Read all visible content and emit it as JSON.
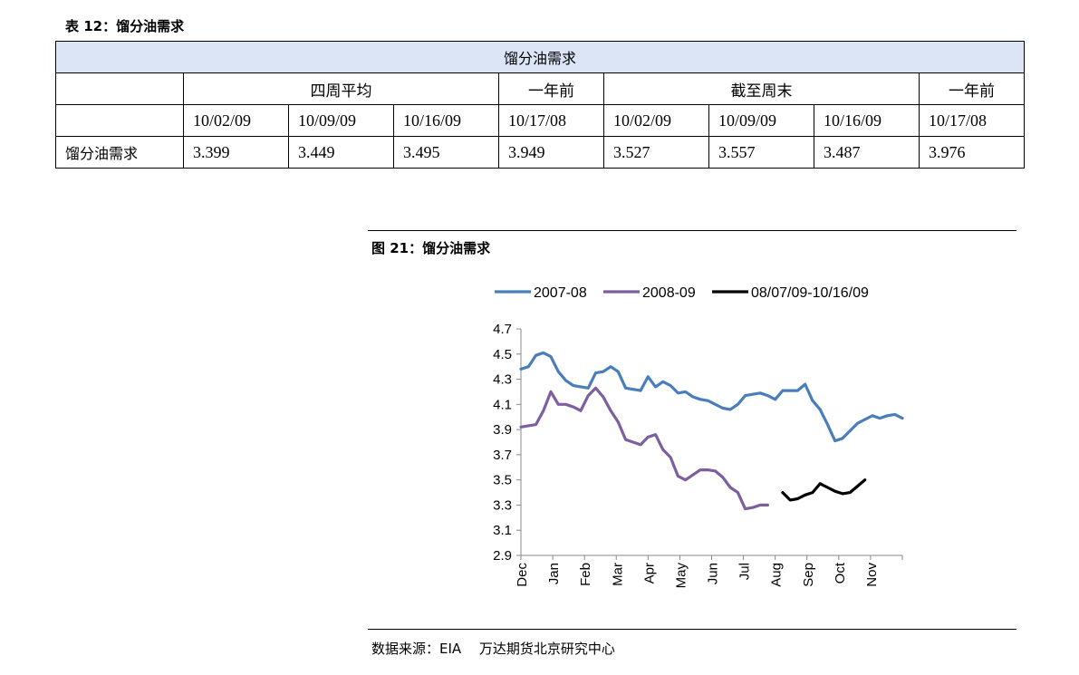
{
  "table": {
    "title": "表 12：馏分油需求",
    "band_header": "馏分油需求",
    "group_headers": [
      "四周平均",
      "一年前",
      "截至周末",
      "一年前"
    ],
    "dates": [
      "10/02/09",
      "10/09/09",
      "10/16/09",
      "10/17/08",
      "10/02/09",
      "10/09/09",
      "10/16/09",
      "10/17/08"
    ],
    "row_label": "馏分油需求",
    "values": [
      "3.399",
      "3.449",
      "3.495",
      "3.949",
      "3.527",
      "3.557",
      "3.487",
      "3.976"
    ]
  },
  "figure": {
    "title": "图 21：馏分油需求",
    "source": "数据来源：EIA　 万达期货北京研究中心"
  },
  "chart_data": {
    "type": "line",
    "title": "",
    "xlabel": "",
    "ylabel": "",
    "ylim": [
      2.9,
      4.7
    ],
    "yticks": [
      "4.7",
      "4.5",
      "4.3",
      "4.1",
      "3.9",
      "3.7",
      "3.5",
      "3.3",
      "3.1",
      "2.9"
    ],
    "months": [
      "Dec",
      "Jan",
      "Feb",
      "Mar",
      "Apr",
      "May",
      "Jun",
      "Jul",
      "Aug",
      "Sep",
      "Oct",
      "Nov"
    ],
    "legend_position": "top",
    "series": [
      {
        "name": "2007-08",
        "color": "#4a7ebb",
        "week_start": 0,
        "values": [
          4.38,
          4.4,
          4.49,
          4.51,
          4.48,
          4.36,
          4.29,
          4.25,
          4.24,
          4.23,
          4.35,
          4.36,
          4.4,
          4.36,
          4.23,
          4.22,
          4.21,
          4.32,
          4.24,
          4.28,
          4.25,
          4.19,
          4.2,
          4.16,
          4.14,
          4.13,
          4.1,
          4.07,
          4.06,
          4.1,
          4.17,
          4.18,
          4.19,
          4.17,
          4.14,
          4.21,
          4.21,
          4.21,
          4.26,
          4.13,
          4.06,
          3.94,
          3.81,
          3.83,
          3.89,
          3.95,
          3.98,
          4.01,
          3.99,
          4.01,
          4.02,
          3.99
        ]
      },
      {
        "name": "2008-09",
        "color": "#7d5fa0",
        "week_start": 0,
        "values": [
          3.92,
          3.93,
          3.94,
          4.05,
          4.2,
          4.1,
          4.1,
          4.08,
          4.05,
          4.17,
          4.23,
          4.16,
          4.05,
          3.96,
          3.82,
          3.8,
          3.78,
          3.84,
          3.86,
          3.74,
          3.68,
          3.53,
          3.5,
          3.54,
          3.58,
          3.58,
          3.57,
          3.52,
          3.44,
          3.4,
          3.27,
          3.28,
          3.3,
          3.3
        ]
      },
      {
        "name": "08/07/09-10/16/09",
        "color": "#000000",
        "week_start": 35,
        "values": [
          3.4,
          3.34,
          3.35,
          3.38,
          3.4,
          3.47,
          3.44,
          3.41,
          3.39,
          3.4,
          3.45,
          3.5
        ]
      }
    ]
  }
}
